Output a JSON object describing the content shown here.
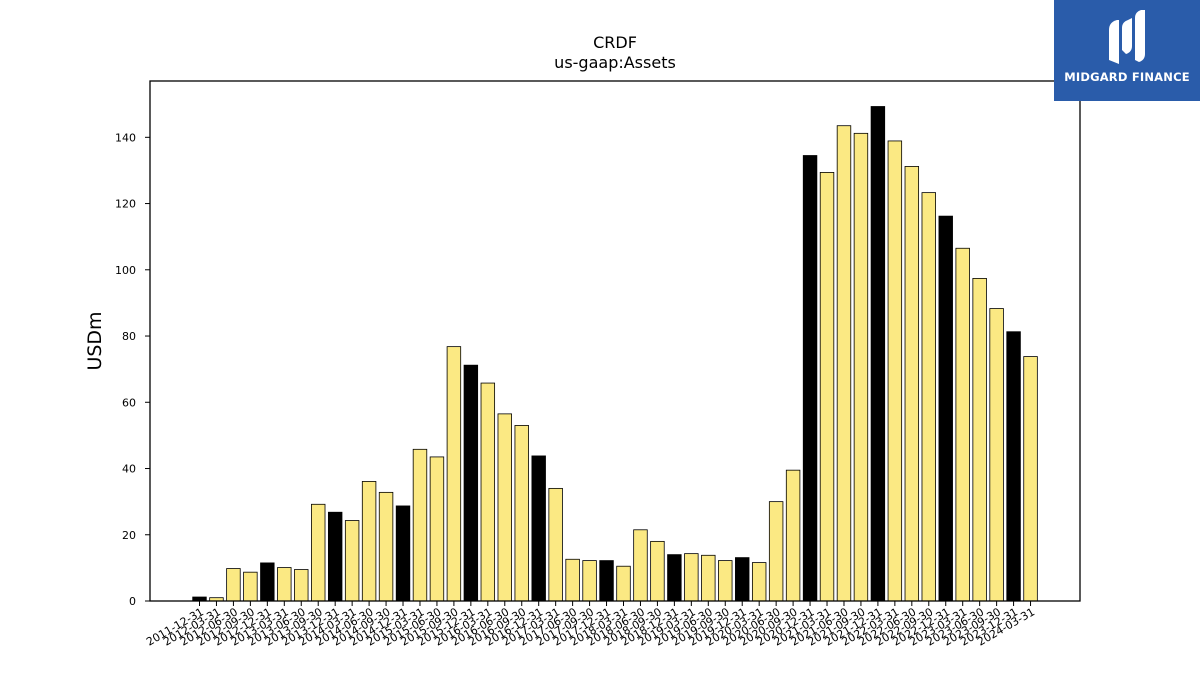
{
  "chart_data": {
    "type": "bar",
    "title": "CRDF",
    "subtitle": "us-gaap:Assets",
    "xlabel": "",
    "ylabel": "USDm",
    "ylim": [
      0,
      157
    ],
    "yticks": [
      0,
      20,
      40,
      60,
      80,
      100,
      120,
      140
    ],
    "grid": false,
    "categories": [
      "2011-12-31",
      "2012-03-31",
      "2012-06-30",
      "2012-09-30",
      "2012-12-31",
      "2013-03-31",
      "2013-06-30",
      "2013-09-30",
      "2013-12-31",
      "2014-03-31",
      "2014-06-30",
      "2014-09-30",
      "2014-12-31",
      "2015-03-31",
      "2015-06-30",
      "2015-09-30",
      "2015-12-31",
      "2016-03-31",
      "2016-06-30",
      "2016-09-30",
      "2016-12-31",
      "2017-03-31",
      "2017-06-30",
      "2017-09-30",
      "2017-12-31",
      "2018-03-31",
      "2018-06-30",
      "2018-09-30",
      "2018-12-31",
      "2019-03-31",
      "2019-06-30",
      "2019-09-30",
      "2019-12-31",
      "2020-03-31",
      "2020-06-30",
      "2020-09-30",
      "2020-12-31",
      "2021-03-31",
      "2021-06-30",
      "2021-09-30",
      "2021-12-31",
      "2022-03-31",
      "2022-06-30",
      "2022-09-30",
      "2022-12-31",
      "2023-03-31",
      "2023-06-30",
      "2023-09-30",
      "2023-12-31",
      "2024-03-31"
    ],
    "values": [
      1.2,
      1.0,
      9.8,
      8.7,
      11.5,
      10.1,
      9.5,
      29.2,
      26.8,
      24.3,
      36.1,
      32.8,
      28.7,
      45.8,
      43.5,
      76.8,
      71.2,
      65.8,
      56.5,
      53.0,
      43.8,
      34.0,
      12.6,
      12.2,
      12.2,
      10.5,
      21.5,
      18.0,
      14.0,
      14.3,
      13.8,
      12.2,
      13.1,
      11.6,
      30.0,
      39.5,
      134.5,
      129.4,
      143.5,
      141.2,
      149.3,
      138.9,
      131.2,
      123.3,
      116.2,
      106.5,
      97.4,
      88.3,
      81.3,
      73.8
    ],
    "year_end_color": "#000000",
    "quarter_color": "#fbe983",
    "edge_color": "#000000"
  },
  "logo": {
    "text": "MIDGARD FINANCE",
    "background": "#2a5caa"
  }
}
